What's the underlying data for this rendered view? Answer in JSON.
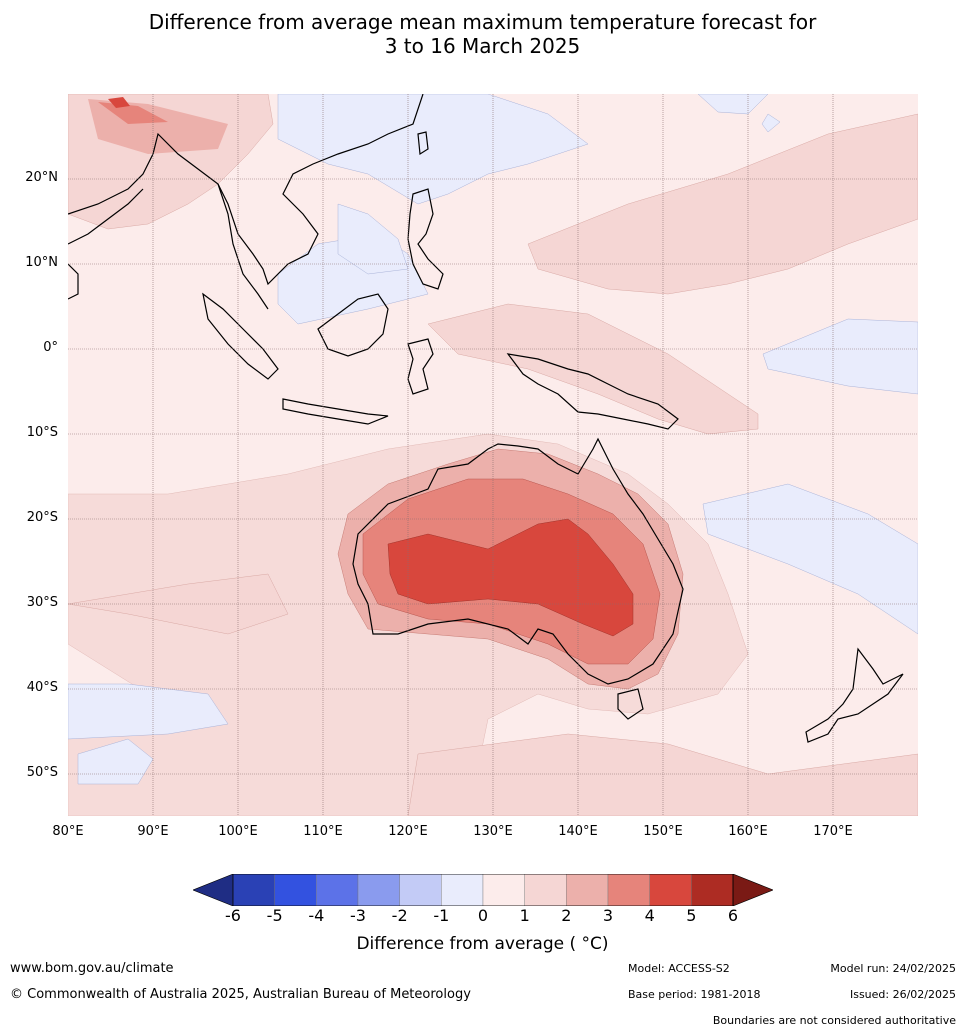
{
  "title_line1": "Difference from average mean maximum temperature forecast for",
  "title_line2": "3 to 16 March 2025",
  "lat_labels": [
    "20°N",
    "10°N",
    "0°",
    "10°S",
    "20°S",
    "30°S",
    "40°S",
    "50°S"
  ],
  "lon_labels": [
    "80°E",
    "90°E",
    "100°E",
    "110°E",
    "120°E",
    "130°E",
    "140°E",
    "150°E",
    "160°E",
    "170°E"
  ],
  "colorbar": {
    "ticks": [
      "-6",
      "-5",
      "-4",
      "-3",
      "-2",
      "-1",
      "0",
      "1",
      "2",
      "3",
      "4",
      "5",
      "6"
    ],
    "colors": [
      "#1f2d84",
      "#2a41b5",
      "#3352e0",
      "#5c72e8",
      "#8a9bee",
      "#c3cbf6",
      "#e9ecfc",
      "#fceceb",
      "#f5d6d4",
      "#ecb0ab",
      "#e6847b",
      "#d8473d",
      "#ad2c23",
      "#7a1a15"
    ],
    "label": "Difference from average ( °C)"
  },
  "footer": {
    "url": "www.bom.gov.au/climate",
    "copyright": "© Commonwealth of Australia 2025, Australian Bureau of Meteorology",
    "model": "Model: ACCESS-S2",
    "base_period": "Base period: 1981-2018",
    "model_run": "Model run: 24/02/2025",
    "issued": "Issued: 26/02/2025",
    "disclaimer": "Boundaries are not considered authoritative"
  }
}
